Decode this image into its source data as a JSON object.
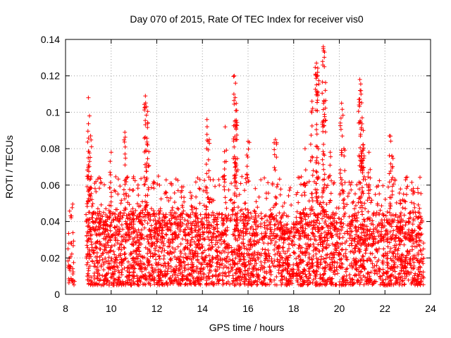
{
  "chart_data": {
    "type": "scatter",
    "title": "Day 070 of 2015, Rate Of TEC Index for receiver vis0",
    "xlabel": "GPS time / hours",
    "ylabel": "ROTI / TECUs",
    "xlim": [
      8,
      24
    ],
    "ylim": [
      0,
      0.14
    ],
    "xticks": [
      8,
      10,
      12,
      14,
      16,
      18,
      20,
      22,
      24
    ],
    "xtick_labels": [
      "8",
      "10",
      "12",
      "14",
      "16",
      "18",
      "20",
      "22",
      "24"
    ],
    "yticks": [
      0,
      0.02,
      0.04,
      0.06,
      0.08,
      0.1,
      0.12,
      0.14
    ],
    "ytick_labels": [
      "0",
      "0.02",
      "0.04",
      "0.06",
      "0.08",
      "0.1",
      "0.12",
      "0.14"
    ],
    "grid": true,
    "marker": "+",
    "color": "#ff0000",
    "series": [
      {
        "name": "ROTI",
        "description_of_density": "dense band approx 0.005-0.06 from 8.9h to 23.7h, short segment 8.1-8.4h",
        "clusters": [
          {
            "x_range": [
              8.1,
              8.4
            ],
            "y_range": [
              0.005,
              0.05
            ],
            "count": 40
          },
          {
            "x_range": [
              8.9,
              23.7
            ],
            "y_range": [
              0.005,
              0.045
            ],
            "count": 3000
          },
          {
            "x_range": [
              8.9,
              23.7
            ],
            "y_range": [
              0.03,
              0.065
            ],
            "count": 700
          }
        ],
        "peaks": [
          {
            "x": 9.0,
            "y": 0.108
          },
          {
            "x": 9.05,
            "y": 0.098
          },
          {
            "x": 9.1,
            "y": 0.087
          },
          {
            "x": 10.0,
            "y": 0.078
          },
          {
            "x": 10.6,
            "y": 0.089
          },
          {
            "x": 11.5,
            "y": 0.109
          },
          {
            "x": 11.55,
            "y": 0.103
          },
          {
            "x": 11.6,
            "y": 0.082
          },
          {
            "x": 13.1,
            "y": 0.057
          },
          {
            "x": 14.2,
            "y": 0.096
          },
          {
            "x": 14.3,
            "y": 0.085
          },
          {
            "x": 15.0,
            "y": 0.092
          },
          {
            "x": 15.4,
            "y": 0.12
          },
          {
            "x": 15.45,
            "y": 0.116
          },
          {
            "x": 15.5,
            "y": 0.101
          },
          {
            "x": 16.0,
            "y": 0.084
          },
          {
            "x": 17.2,
            "y": 0.085
          },
          {
            "x": 18.5,
            "y": 0.08
          },
          {
            "x": 18.8,
            "y": 0.106
          },
          {
            "x": 19.0,
            "y": 0.127
          },
          {
            "x": 19.05,
            "y": 0.122
          },
          {
            "x": 19.3,
            "y": 0.136
          },
          {
            "x": 19.35,
            "y": 0.133
          },
          {
            "x": 19.6,
            "y": 0.078
          },
          {
            "x": 20.1,
            "y": 0.105
          },
          {
            "x": 20.2,
            "y": 0.08
          },
          {
            "x": 20.9,
            "y": 0.118
          },
          {
            "x": 20.95,
            "y": 0.11
          },
          {
            "x": 21.0,
            "y": 0.097
          },
          {
            "x": 21.05,
            "y": 0.09
          },
          {
            "x": 21.3,
            "y": 0.078
          },
          {
            "x": 22.2,
            "y": 0.087
          },
          {
            "x": 22.3,
            "y": 0.076
          }
        ]
      }
    ]
  }
}
